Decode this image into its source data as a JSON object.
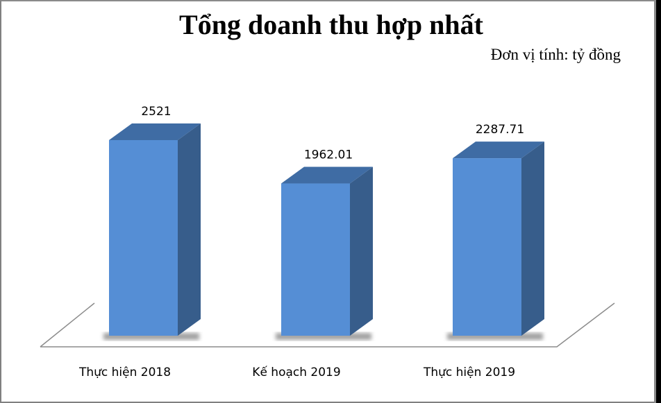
{
  "title": "Tổng doanh thu hợp nhất",
  "unit_label": "Đơn vị tính: tỷ đồng",
  "colors": {
    "bar_front": "#558ed5",
    "bar_top": "#3f6ca4",
    "bar_side": "#375d8b",
    "floor_line": "#8c8c8c"
  },
  "chart_data": {
    "type": "bar",
    "style": "3d-column",
    "title": "Tổng doanh thu hợp nhất",
    "subtitle": "Đơn vị tính: tỷ đồng",
    "categories": [
      "Thực hiện 2018",
      "Kế hoạch 2019",
      "Thực hiện 2019"
    ],
    "values": [
      2521,
      1962.01,
      2287.71
    ],
    "data_labels": [
      "2521",
      "1962.01",
      "2287.71"
    ],
    "xlabel": "",
    "ylabel": "",
    "grid": false,
    "legend": "none"
  }
}
